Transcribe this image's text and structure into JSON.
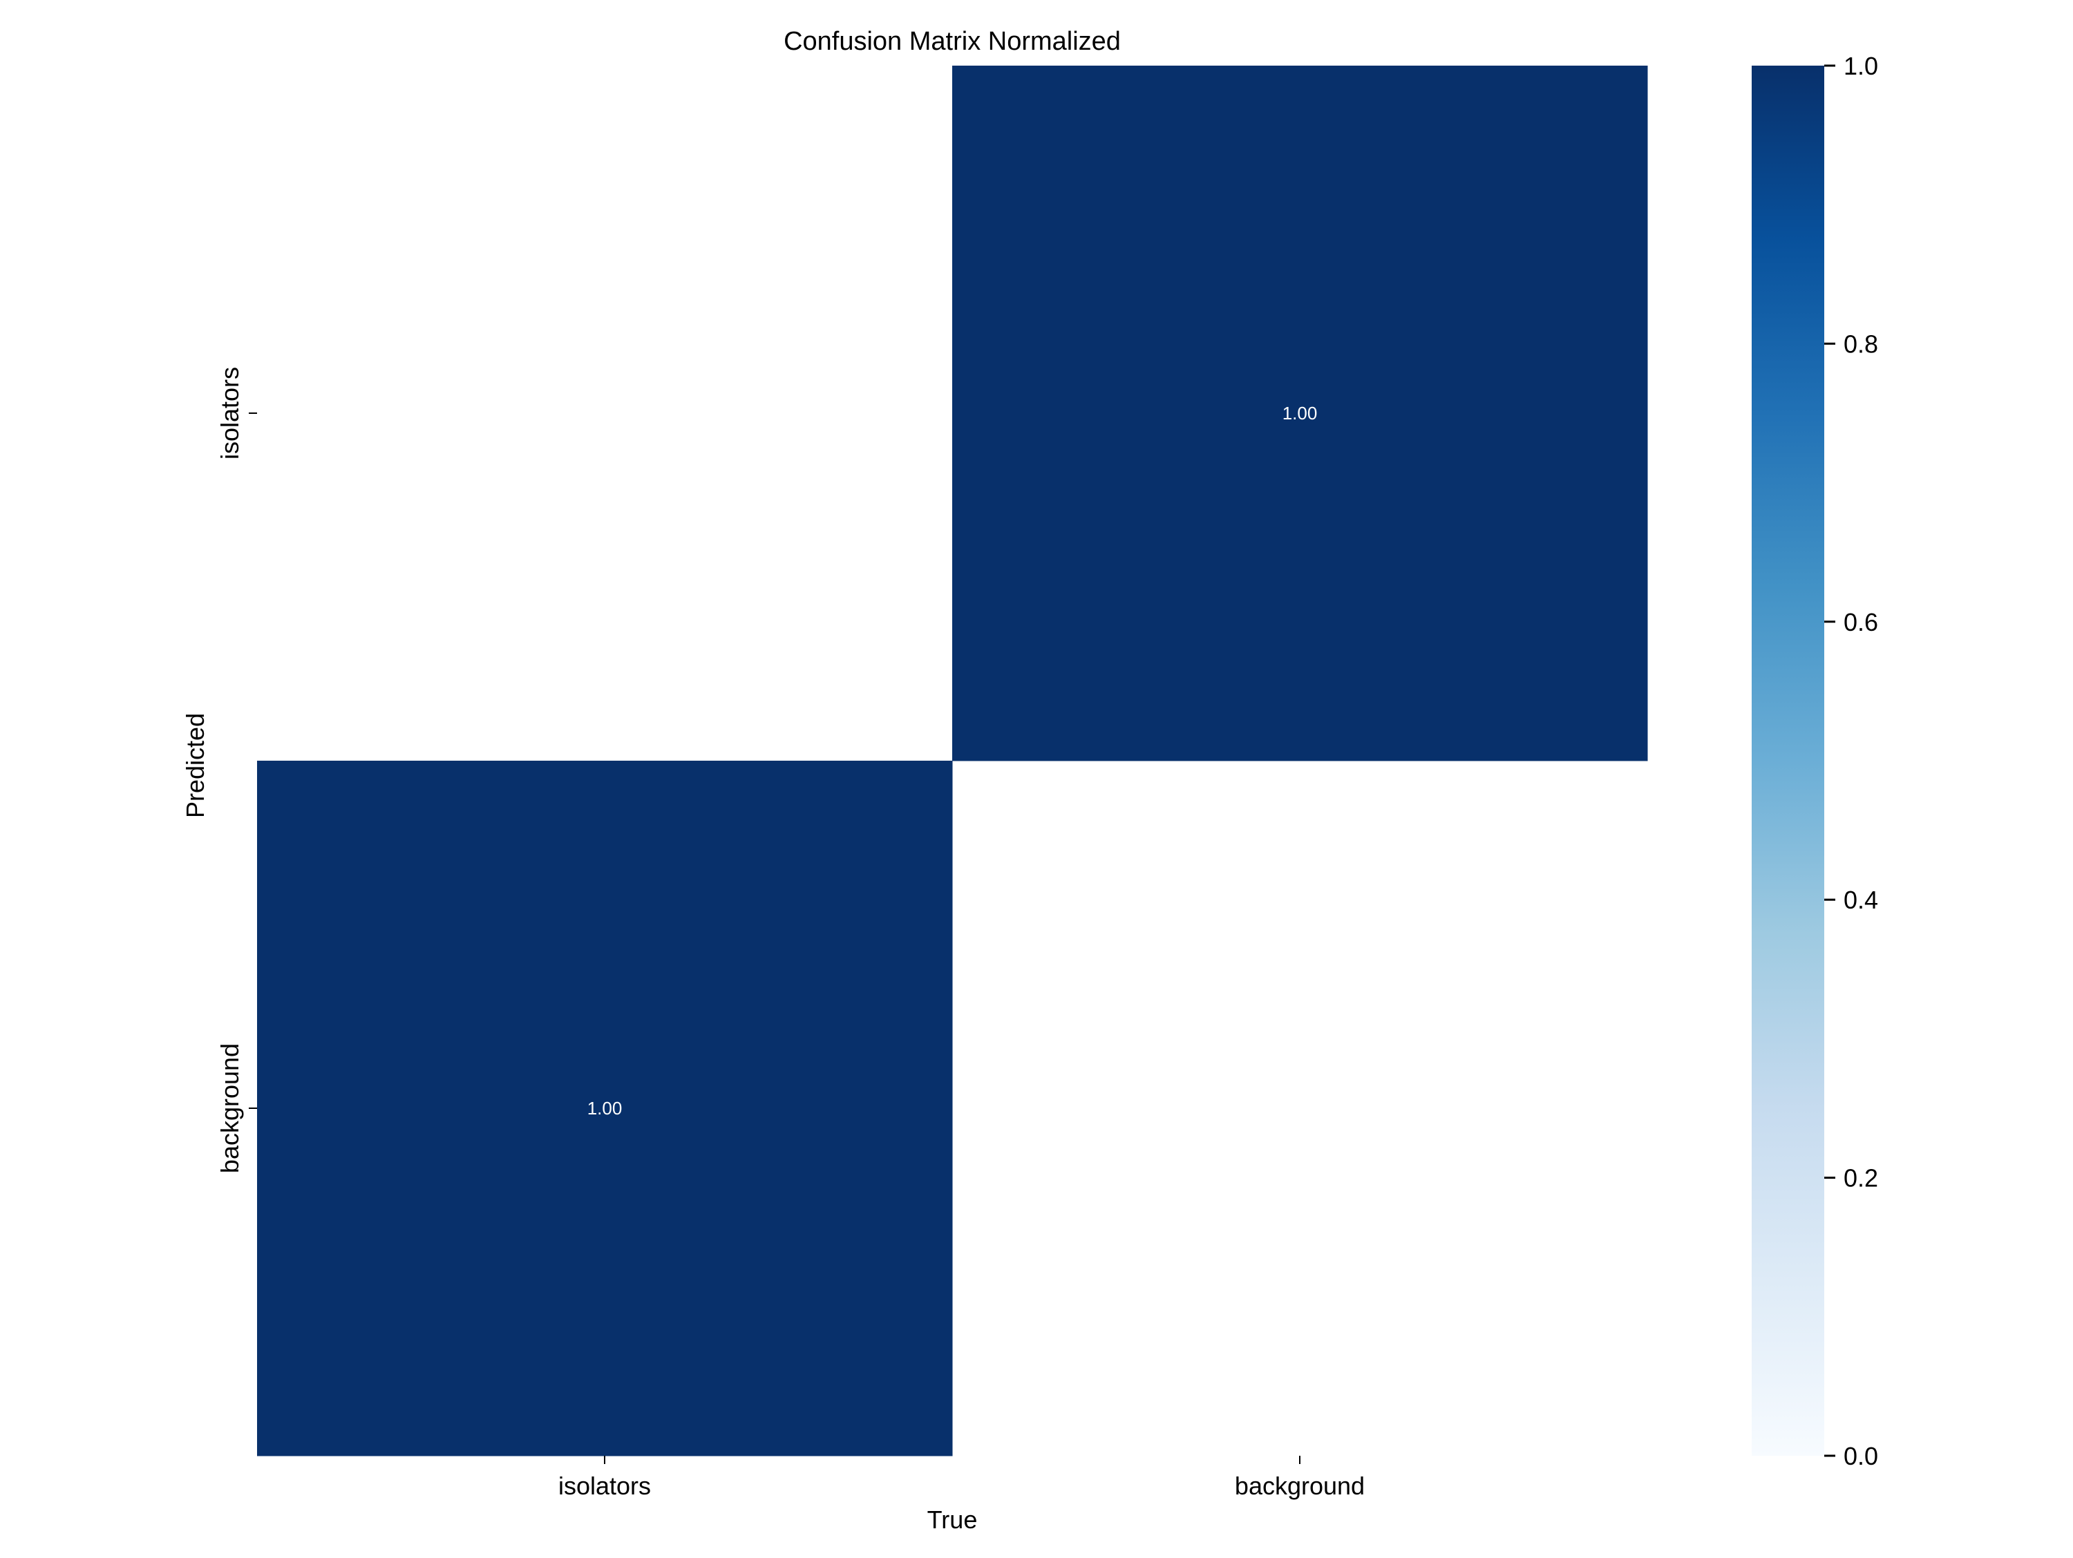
{
  "chart_data": {
    "type": "heatmap",
    "title": "Confusion Matrix Normalized",
    "xlabel": "True",
    "ylabel": "Predicted",
    "x_categories": [
      "isolators",
      "background"
    ],
    "y_categories": [
      "isolators",
      "background"
    ],
    "values": [
      [
        null,
        1.0
      ],
      [
        1.0,
        null
      ]
    ],
    "cell_labels": [
      [
        "",
        "1.00"
      ],
      [
        "1.00",
        ""
      ]
    ],
    "colormap": "Blues",
    "vmin": 0.0,
    "vmax": 1.0,
    "colorbar": {
      "ticks": [
        0.0,
        0.2,
        0.4,
        0.6,
        0.8,
        1.0
      ],
      "tick_labels": [
        "0.0",
        "0.2",
        "0.4",
        "0.6",
        "0.8",
        "1.0"
      ]
    },
    "grid": false,
    "colors": {
      "empty": "#ffffff",
      "high": "#08306b",
      "low": "#f7fbff",
      "cell_text": "#ffffff"
    }
  }
}
